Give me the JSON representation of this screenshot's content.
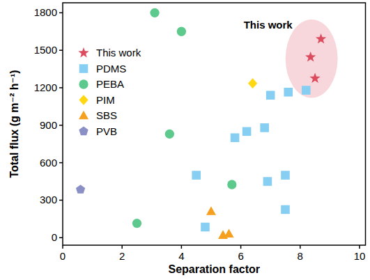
{
  "chart_data": {
    "type": "scatter",
    "x_label": "Separation factor",
    "y_label": "Total flux (g m⁻² h⁻¹)",
    "annotation": "This work",
    "xlim": [
      0,
      10.2
    ],
    "ylim": [
      -60,
      1880
    ],
    "xticks": [
      0,
      2,
      4,
      6,
      8,
      10
    ],
    "yticks": [
      0,
      300,
      600,
      900,
      1200,
      1500,
      1800
    ],
    "legend": "upper left",
    "grid": false,
    "series": [
      {
        "name": "This work",
        "color": "#dc4b5e",
        "marker": "star",
        "x": [
          8.7,
          8.35,
          8.5
        ],
        "values": [
          1590,
          1445,
          1275
        ]
      },
      {
        "name": "PDMS",
        "color": "#86cff3",
        "marker": "square",
        "x": [
          4.5,
          4.8,
          5.8,
          6.2,
          6.8,
          7.0,
          7.6,
          8.2,
          6.9,
          7.5,
          7.5
        ],
        "values": [
          500,
          85,
          800,
          850,
          880,
          1140,
          1165,
          1180,
          450,
          500,
          225
        ]
      },
      {
        "name": "PEBA",
        "color": "#5ec98c",
        "marker": "circle",
        "x": [
          3.1,
          4.0,
          3.6,
          5.7,
          2.5
        ],
        "values": [
          1800,
          1650,
          830,
          425,
          115
        ]
      },
      {
        "name": "PIM",
        "color": "#ffd814",
        "marker": "diamond",
        "x": [
          6.4
        ],
        "values": [
          1235
        ]
      },
      {
        "name": "SBS",
        "color": "#f5a01e",
        "marker": "triangle",
        "x": [
          5.0,
          5.4,
          5.6
        ],
        "values": [
          210,
          20,
          30
        ]
      },
      {
        "name": "PVB",
        "color": "#8a90c6",
        "marker": "pentagon",
        "x": [
          0.6
        ],
        "values": [
          385
        ]
      }
    ]
  }
}
